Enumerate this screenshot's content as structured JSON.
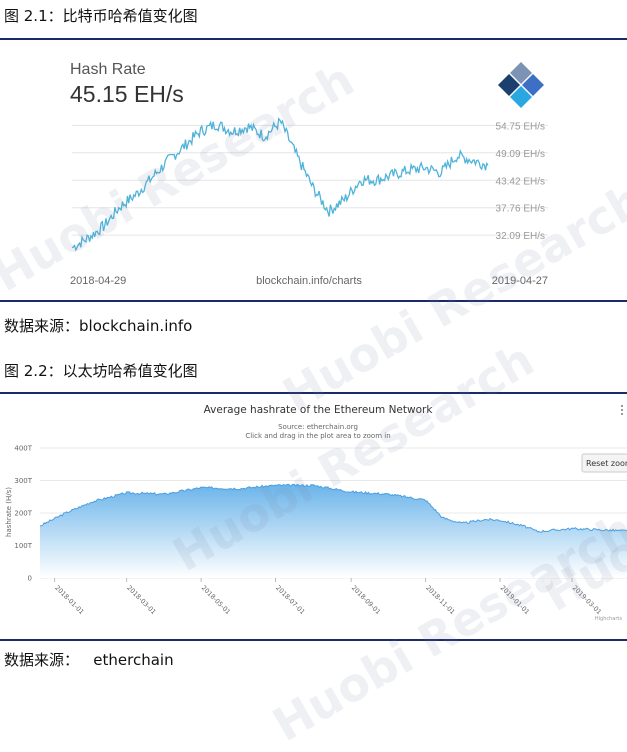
{
  "figure1": {
    "caption": "图 2.1：比特币哈希值变化图",
    "source": "数据来源：blockchain.info"
  },
  "figure2": {
    "caption": "图 2.2：以太坊哈希值变化图",
    "source": "数据来源：   etherchain"
  },
  "watermark": "Huobi Research",
  "chart_data": [
    {
      "type": "line",
      "title": "Hash Rate",
      "subtitle": "45.15 EH/s",
      "x_start_label": "2018-04-29",
      "x_end_label": "2019-04-27",
      "credit": "blockchain.info/charts",
      "ytick_labels": [
        "54.75 EH/s",
        "49.09 EH/s",
        "43.42 EH/s",
        "37.76 EH/s",
        "32.09 EH/s"
      ],
      "yticks": [
        54.75,
        49.09,
        43.42,
        37.76,
        32.09
      ],
      "ylim": [
        28.0,
        57.5
      ],
      "grid": true,
      "colors": {
        "line": "#4fb3d9",
        "logo_dark": "#1b3f6e",
        "logo_light": "#29a7e1"
      },
      "series": [
        {
          "x": [
            "2018-04-29",
            "2018-05-13",
            "2018-05-27",
            "2018-06-10",
            "2018-06-24",
            "2018-07-08",
            "2018-07-22",
            "2018-08-05",
            "2018-08-19",
            "2018-09-02",
            "2018-09-16",
            "2018-09-30",
            "2018-10-14",
            "2018-10-28",
            "2018-11-11",
            "2018-11-25",
            "2018-12-09",
            "2018-12-23",
            "2019-01-06",
            "2019-01-20",
            "2019-02-03",
            "2019-02-17",
            "2019-03-03",
            "2019-03-17",
            "2019-03-31",
            "2019-04-14",
            "2019-04-27"
          ],
          "values": [
            29.5,
            31.5,
            34.0,
            38.0,
            40.5,
            44.0,
            47.5,
            50.5,
            53.5,
            55.0,
            53.5,
            54.5,
            52.5,
            55.5,
            48.5,
            42.0,
            37.0,
            39.5,
            43.5,
            43.5,
            44.5,
            45.5,
            46.0,
            45.0,
            48.5,
            47.5,
            46.5
          ]
        }
      ]
    },
    {
      "type": "area",
      "title": "Average hashrate of the Ethereum Network",
      "subtitle": "Source: etherchain.org",
      "note": "Click and drag in the plot area to zoom in",
      "ylabel": "hashrate (H/s)",
      "ytick_labels": [
        "400T",
        "300T",
        "200T",
        "100T",
        "0"
      ],
      "yticks": [
        400,
        300,
        200,
        100,
        0
      ],
      "ylim": [
        0,
        400
      ],
      "xtick_labels": [
        "2018-01-01",
        "2018-03-01",
        "2018-05-01",
        "2018-07-01",
        "2018-09-01",
        "2018-11-01",
        "2019-01-01",
        "2019-03-01"
      ],
      "xticks": [
        "2018-01-01",
        "2018-03-01",
        "2018-05-01",
        "2018-07-01",
        "2018-09-01",
        "2018-11-01",
        "2019-01-01",
        "2019-03-01"
      ],
      "xlim": [
        "2017-12-20",
        "2019-04-15"
      ],
      "reset_label": "Reset zoom",
      "credit": "Highcharts",
      "grid": true,
      "colors": {
        "fill_top": "#6bb4ea",
        "fill_bottom": "#ffffff",
        "line": "#4a9fe0"
      },
      "series": [
        {
          "x": [
            "2017-12-20",
            "2018-01-10",
            "2018-02-01",
            "2018-03-01",
            "2018-04-01",
            "2018-05-01",
            "2018-06-01",
            "2018-07-01",
            "2018-08-01",
            "2018-09-01",
            "2018-10-01",
            "2018-11-01",
            "2018-11-15",
            "2018-12-01",
            "2018-12-20",
            "2019-01-01",
            "2019-01-20",
            "2019-02-01",
            "2019-03-01",
            "2019-04-01",
            "2019-04-15"
          ],
          "values": [
            160,
            200,
            235,
            262,
            258,
            278,
            275,
            285,
            285,
            265,
            258,
            240,
            185,
            168,
            180,
            178,
            160,
            143,
            152,
            147,
            145
          ]
        }
      ]
    }
  ]
}
